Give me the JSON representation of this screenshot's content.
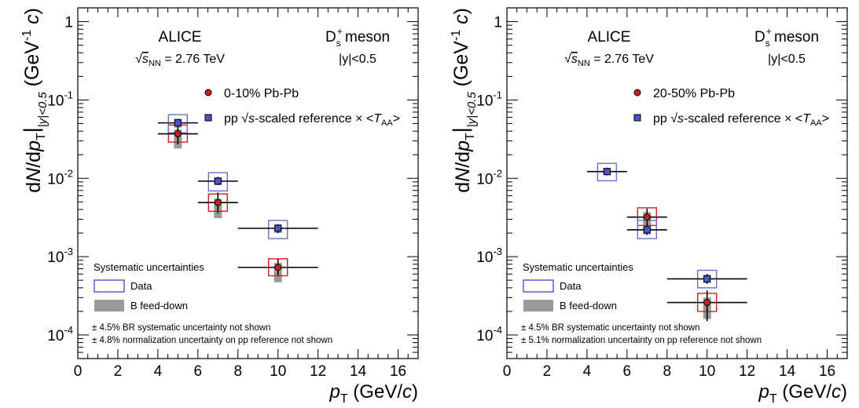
{
  "chart_data": [
    {
      "type": "scatter",
      "xscale": "linear",
      "yscale": "log",
      "xlim": [
        0,
        17
      ],
      "ylim": [
        5e-05,
        1.5
      ],
      "xticks": [
        0,
        2,
        4,
        6,
        8,
        10,
        12,
        14,
        16
      ],
      "yticks": [
        0.0001,
        0.001,
        0.01,
        0.1,
        1
      ],
      "ytick_labels": [
        "10^-4",
        "10^-3",
        "10^-2",
        "10^-1",
        "1"
      ],
      "xlabel": "p_T (GeV/c)",
      "ylabel": "dN/dp_T |_|y|<0.5 (GeV^-1 c)",
      "header": {
        "experiment": "ALICE",
        "energy": "√sNN = 2.76 TeV",
        "particle": "D⁺s meson",
        "rapidity": "|y|<0.5"
      },
      "legend": [
        {
          "label": "0-10% Pb-Pb",
          "marker": "circle",
          "color": "#cc1f1f"
        },
        {
          "label": "pp √s-scaled reference × <TAA>",
          "marker": "square",
          "color": "#4b55c8"
        }
      ],
      "syst_legend": {
        "title": "Systematic uncertainties",
        "items": [
          {
            "label": "Data",
            "style": "open-box"
          },
          {
            "label": "B feed-down",
            "style": "filled-box"
          }
        ]
      },
      "notes": [
        "± 4.5% BR systematic uncertainty not shown",
        "± 4.8% normalization uncertainty on pp reference not shown"
      ],
      "series": [
        {
          "name": "0-10% Pb-Pb",
          "marker": "circle",
          "color": "#cc1f1f",
          "points": [
            {
              "x": 5,
              "xlo": 4,
              "xhi": 6,
              "y": 0.037,
              "stat_lo": 0.027,
              "stat_hi": 0.05,
              "syst_lo": 0.029,
              "syst_hi": 0.048,
              "fd_lo": 0.024,
              "fd_hi": 0.042
            },
            {
              "x": 7,
              "xlo": 6,
              "xhi": 8,
              "y": 0.0049,
              "stat_lo": 0.0036,
              "stat_hi": 0.0066,
              "syst_lo": 0.0038,
              "syst_hi": 0.0063,
              "fd_lo": 0.0031,
              "fd_hi": 0.0055
            },
            {
              "x": 10,
              "xlo": 8,
              "xhi": 12,
              "y": 0.00073,
              "stat_lo": 0.00058,
              "stat_hi": 0.00093,
              "syst_lo": 0.00057,
              "syst_hi": 0.00094,
              "fd_lo": 0.00047,
              "fd_hi": 0.00083
            }
          ]
        },
        {
          "name": "pp √s-scaled reference × <TAA>",
          "marker": "square",
          "color": "#4b55c8",
          "points": [
            {
              "x": 5,
              "xlo": 4,
              "xhi": 6,
              "y": 0.051,
              "stat_lo": 0.046,
              "stat_hi": 0.057,
              "syst_lo": 0.038,
              "syst_hi": 0.065,
              "fd_lo": 0.044,
              "fd_hi": 0.058
            },
            {
              "x": 7,
              "xlo": 6,
              "xhi": 8,
              "y": 0.0092,
              "stat_lo": 0.0082,
              "stat_hi": 0.0104,
              "syst_lo": 0.0069,
              "syst_hi": 0.0118,
              "fd_lo": 0.0082,
              "fd_hi": 0.0103
            },
            {
              "x": 10,
              "xlo": 8,
              "xhi": 12,
              "y": 0.0023,
              "stat_lo": 0.002,
              "stat_hi": 0.0026,
              "syst_lo": 0.0017,
              "syst_hi": 0.0029,
              "fd_lo": 0.002,
              "fd_hi": 0.0026
            }
          ]
        }
      ]
    },
    {
      "type": "scatter",
      "xscale": "linear",
      "yscale": "log",
      "xlim": [
        0,
        17
      ],
      "ylim": [
        5e-05,
        1.5
      ],
      "xticks": [
        0,
        2,
        4,
        6,
        8,
        10,
        12,
        14,
        16
      ],
      "yticks": [
        0.0001,
        0.001,
        0.01,
        0.1,
        1
      ],
      "ytick_labels": [
        "10^-4",
        "10^-3",
        "10^-2",
        "10^-1",
        "1"
      ],
      "xlabel": "p_T (GeV/c)",
      "ylabel": "dN/dp_T |_|y|<0.5 (GeV^-1 c)",
      "header": {
        "experiment": "ALICE",
        "energy": "√sNN = 2.76 TeV",
        "particle": "D⁺s meson",
        "rapidity": "|y|<0.5"
      },
      "legend": [
        {
          "label": "20-50% Pb-Pb",
          "marker": "circle",
          "color": "#cc1f1f"
        },
        {
          "label": "pp √s-scaled reference × <TAA>",
          "marker": "square",
          "color": "#4b55c8"
        }
      ],
      "syst_legend": {
        "title": "Systematic uncertainties",
        "items": [
          {
            "label": "Data",
            "style": "open-box"
          },
          {
            "label": "B feed-down",
            "style": "filled-box"
          }
        ]
      },
      "notes": [
        "± 4.5% BR systematic uncertainty not shown",
        "± 5.1% normalization uncertainty on pp reference not shown"
      ],
      "series": [
        {
          "name": "20-50% Pb-Pb",
          "marker": "circle",
          "color": "#cc1f1f",
          "points": [
            {
              "x": 7,
              "xlo": 6,
              "xhi": 8,
              "y": 0.0032,
              "stat_lo": 0.0025,
              "stat_hi": 0.0041,
              "syst_lo": 0.0025,
              "syst_hi": 0.0042,
              "fd_lo": 0.0021,
              "fd_hi": 0.0037
            },
            {
              "x": 10,
              "xlo": 8,
              "xhi": 12,
              "y": 0.00026,
              "stat_lo": 0.00015,
              "stat_hi": 0.00037,
              "syst_lo": 0.0002,
              "syst_hi": 0.00034,
              "fd_lo": 0.00016,
              "fd_hi": 0.0003
            }
          ]
        },
        {
          "name": "pp √s-scaled reference × <TAA>",
          "marker": "square",
          "color": "#4b55c8",
          "points": [
            {
              "x": 5,
              "xlo": 4,
              "xhi": 6,
              "y": 0.0122,
              "stat_lo": 0.0109,
              "stat_hi": 0.0137,
              "syst_lo": 0.0093,
              "syst_hi": 0.0155,
              "fd_lo": 0.0109,
              "fd_hi": 0.0136
            },
            {
              "x": 7,
              "xlo": 6,
              "xhi": 8,
              "y": 0.0022,
              "stat_lo": 0.0019,
              "stat_hi": 0.0025,
              "syst_lo": 0.0017,
              "syst_hi": 0.0029,
              "fd_lo": 0.0019,
              "fd_hi": 0.0025
            },
            {
              "x": 10,
              "xlo": 8,
              "xhi": 12,
              "y": 0.00052,
              "stat_lo": 0.00045,
              "stat_hi": 0.0006,
              "syst_lo": 0.0004,
              "syst_hi": 0.00067,
              "fd_lo": 0.00046,
              "fd_hi": 0.00059
            }
          ]
        }
      ]
    }
  ]
}
